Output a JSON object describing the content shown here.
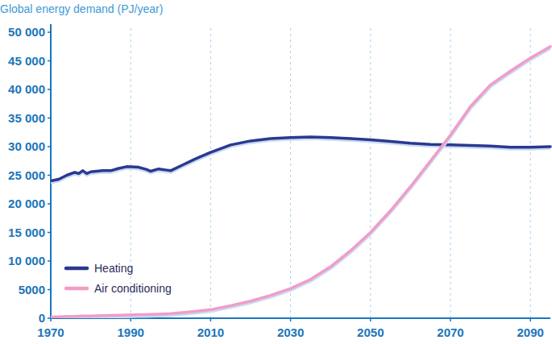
{
  "chart_data": {
    "type": "line",
    "y_label": "Global energy demand (PJ/year)",
    "x": [
      1970,
      1972,
      1974,
      1976,
      1977,
      1978,
      1979,
      1980,
      1983,
      1985,
      1987,
      1989,
      1992,
      1994,
      1995,
      1997,
      1999,
      2000,
      2003,
      2006,
      2010,
      2015,
      2020,
      2025,
      2030,
      2035,
      2040,
      2045,
      2050,
      2055,
      2060,
      2065,
      2070,
      2075,
      2080,
      2085,
      2090,
      2095
    ],
    "series": [
      {
        "name": "Heating",
        "color": "#2b3990",
        "values": [
          24000,
          24300,
          25000,
          25500,
          25300,
          25800,
          25300,
          25600,
          25800,
          25800,
          26200,
          26500,
          26400,
          26000,
          25700,
          26100,
          25900,
          25800,
          26800,
          27800,
          29000,
          30300,
          31000,
          31400,
          31600,
          31700,
          31600,
          31400,
          31200,
          30900,
          30600,
          30400,
          30300,
          30200,
          30100,
          29900,
          29900,
          30000
        ]
      },
      {
        "name": "Air conditioning",
        "color": "#f29cc8",
        "values": [
          200,
          250,
          300,
          330,
          350,
          370,
          390,
          400,
          450,
          500,
          530,
          570,
          620,
          650,
          670,
          720,
          770,
          800,
          980,
          1200,
          1500,
          2200,
          3000,
          4000,
          5200,
          6800,
          9000,
          11800,
          15000,
          18800,
          23000,
          27500,
          32000,
          37000,
          40800,
          43200,
          45500,
          47500
        ]
      }
    ],
    "xlim": [
      1970,
      2095
    ],
    "xticks": [
      1970,
      1990,
      2010,
      2030,
      2050,
      2070,
      2090
    ],
    "ylim": [
      0,
      50000
    ],
    "yticks": [
      0,
      5000,
      {
        "value": 10000,
        "label": "10 000"
      },
      {
        "value": 15000,
        "label": "15 000"
      },
      {
        "value": 20000,
        "label": "20 000"
      },
      {
        "value": 25000,
        "label": "25 000"
      },
      {
        "value": 30000,
        "label": "30 000"
      },
      {
        "value": 35000,
        "label": "35 000"
      },
      {
        "value": 40000,
        "label": "40 000"
      },
      {
        "value": 45000,
        "label": "45 000"
      },
      {
        "value": 50000,
        "label": "50 000"
      }
    ],
    "grid": true,
    "legend": "lower left"
  }
}
